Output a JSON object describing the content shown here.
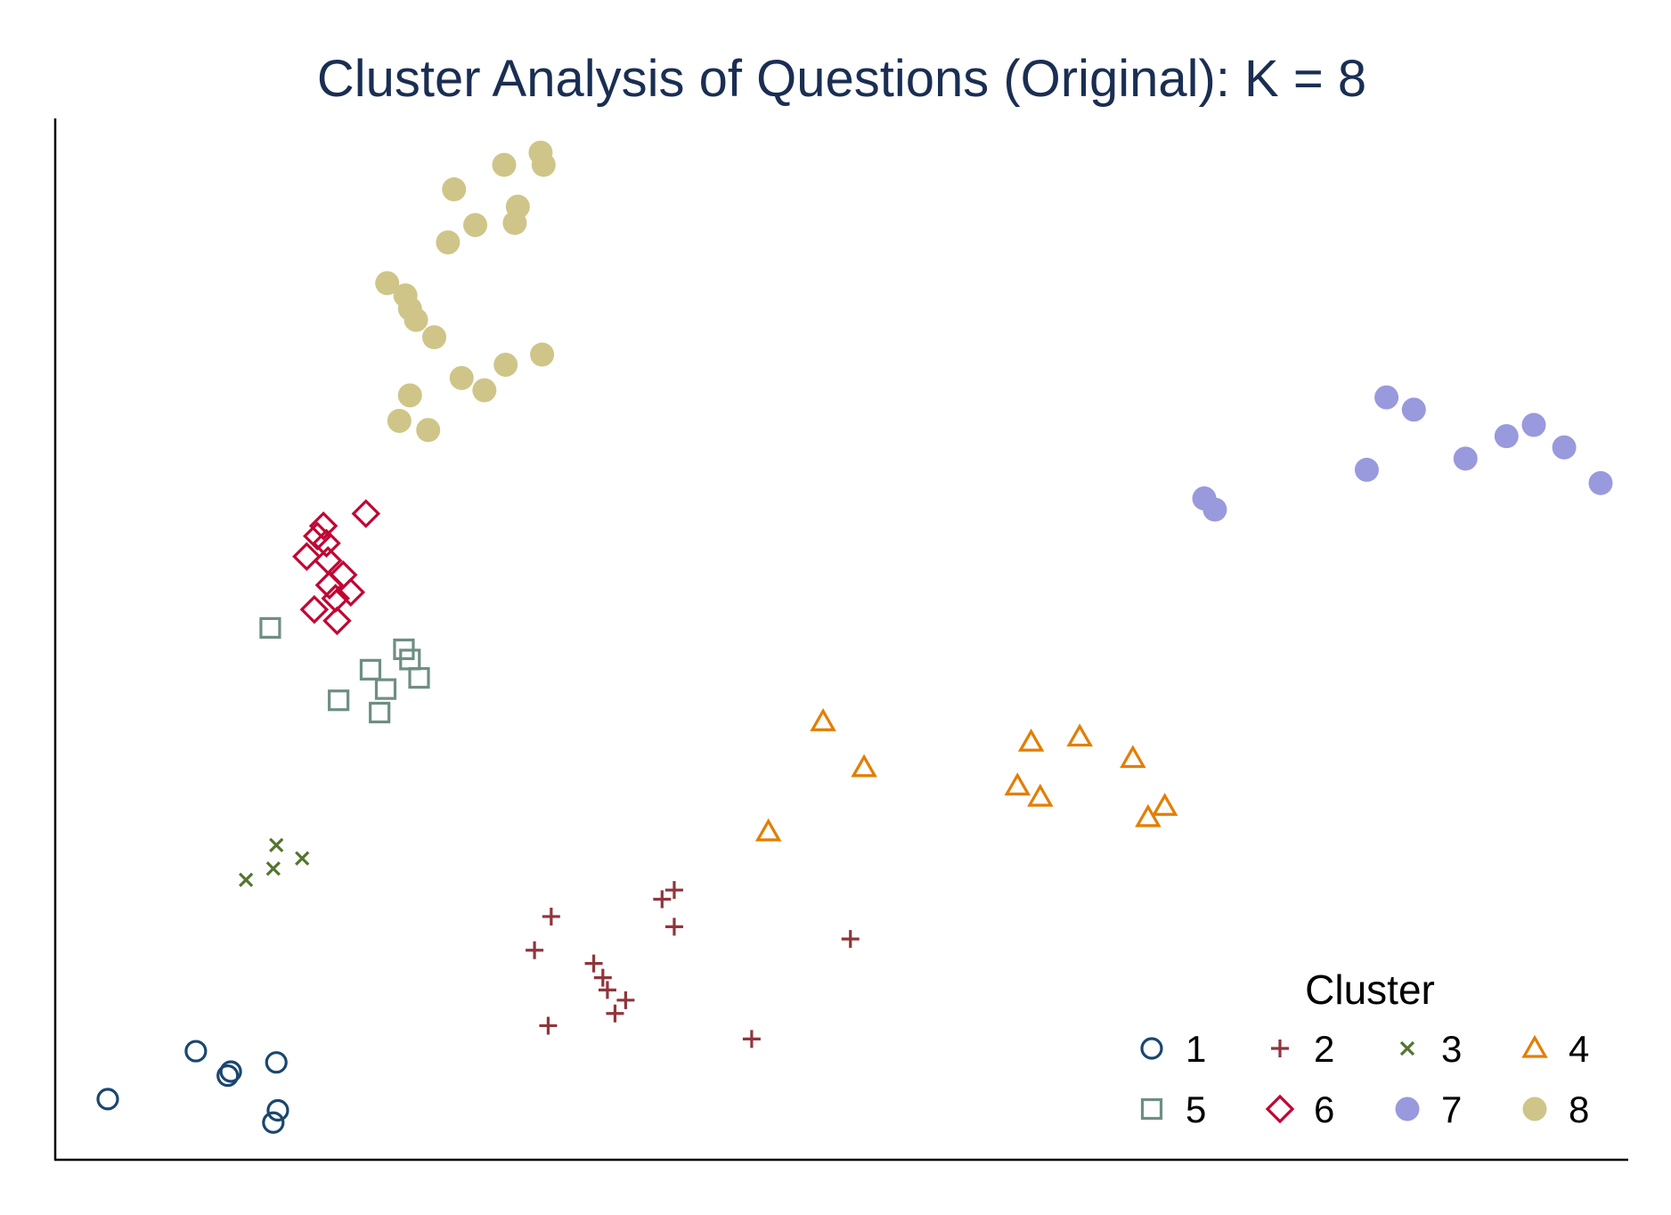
{
  "chart_data": {
    "type": "scatter",
    "title": "Cluster Analysis of Questions (Original): K = 8",
    "xlabel": "",
    "ylabel": "",
    "grid": false,
    "axis_tick_labels": false,
    "legend": {
      "title": "Cluster",
      "placement": "bottom-right",
      "columns": 4
    },
    "xlim": [
      0,
      100
    ],
    "ylim": [
      0,
      100
    ],
    "series": [
      {
        "name": "1",
        "marker": "hollow-circle",
        "color": "#1a476f",
        "points": [
          [
            1.7,
            4.9
          ],
          [
            7.5,
            9.6
          ],
          [
            9.6,
            7.2
          ],
          [
            9.8,
            7.6
          ],
          [
            12.6,
            2.6
          ],
          [
            12.8,
            8.5
          ],
          [
            12.9,
            3.8
          ]
        ]
      },
      {
        "name": "2",
        "marker": "plus",
        "color": "#90353b",
        "points": [
          [
            29.8,
            19.5
          ],
          [
            30.7,
            12.1
          ],
          [
            30.9,
            22.8
          ],
          [
            33.7,
            18.2
          ],
          [
            34.3,
            16.8
          ],
          [
            34.6,
            15.6
          ],
          [
            35.1,
            13.3
          ],
          [
            35.8,
            14.6
          ],
          [
            38.2,
            24.5
          ],
          [
            39.0,
            25.4
          ],
          [
            39.0,
            21.8
          ],
          [
            44.1,
            10.8
          ],
          [
            50.6,
            20.6
          ]
        ]
      },
      {
        "name": "3",
        "marker": "x",
        "color": "#55752f",
        "points": [
          [
            10.8,
            26.4
          ],
          [
            12.6,
            27.5
          ],
          [
            12.8,
            29.8
          ],
          [
            14.5,
            28.5
          ]
        ]
      },
      {
        "name": "4",
        "marker": "hollow-triangle",
        "color": "#e37e00",
        "points": [
          [
            45.2,
            31.1
          ],
          [
            48.8,
            41.9
          ],
          [
            51.5,
            37.4
          ],
          [
            61.6,
            35.6
          ],
          [
            62.5,
            39.9
          ],
          [
            63.1,
            34.5
          ],
          [
            65.7,
            40.4
          ],
          [
            69.2,
            38.3
          ],
          [
            70.2,
            32.5
          ],
          [
            71.3,
            33.6
          ]
        ]
      },
      {
        "name": "5",
        "marker": "hollow-square",
        "color": "#6e8e84",
        "points": [
          [
            12.4,
            51.1
          ],
          [
            16.9,
            44.0
          ],
          [
            19.0,
            47.0
          ],
          [
            19.6,
            42.8
          ],
          [
            20.0,
            45.1
          ],
          [
            21.2,
            49.0
          ],
          [
            21.6,
            48.0
          ],
          [
            22.2,
            46.2
          ]
        ]
      },
      {
        "name": "6",
        "marker": "hollow-diamond",
        "color": "#c10534",
        "points": [
          [
            14.8,
            58.1
          ],
          [
            15.3,
            52.9
          ],
          [
            15.5,
            60.1
          ],
          [
            15.9,
            61.1
          ],
          [
            16.1,
            59.4
          ],
          [
            16.2,
            57.7
          ],
          [
            16.3,
            55.3
          ],
          [
            16.7,
            54.0
          ],
          [
            16.8,
            51.8
          ],
          [
            17.2,
            56.3
          ],
          [
            17.7,
            54.6
          ],
          [
            18.7,
            62.3
          ]
        ]
      },
      {
        "name": "7",
        "marker": "filled-circle",
        "color": "#9999dd",
        "points": [
          [
            73.9,
            63.8
          ],
          [
            74.6,
            62.7
          ],
          [
            84.6,
            66.6
          ],
          [
            85.9,
            73.7
          ],
          [
            87.7,
            72.5
          ],
          [
            91.1,
            67.7
          ],
          [
            93.8,
            69.9
          ],
          [
            95.6,
            71.0
          ],
          [
            97.6,
            68.8
          ],
          [
            100.0,
            65.3
          ]
        ]
      },
      {
        "name": "8",
        "marker": "filled-circle",
        "color": "#cfc589",
        "points": [
          [
            20.1,
            84.9
          ],
          [
            20.9,
            71.4
          ],
          [
            21.3,
            83.7
          ],
          [
            21.6,
            73.9
          ],
          [
            21.6,
            82.4
          ],
          [
            22.0,
            81.3
          ],
          [
            22.8,
            70.5
          ],
          [
            23.2,
            79.6
          ],
          [
            24.1,
            88.9
          ],
          [
            24.5,
            94.1
          ],
          [
            25.0,
            75.6
          ],
          [
            25.9,
            90.6
          ],
          [
            26.5,
            74.4
          ],
          [
            27.8,
            96.5
          ],
          [
            27.9,
            76.9
          ],
          [
            28.5,
            90.8
          ],
          [
            28.7,
            92.4
          ],
          [
            30.2,
            97.7
          ],
          [
            30.4,
            96.5
          ],
          [
            30.3,
            77.9
          ]
        ]
      }
    ]
  }
}
